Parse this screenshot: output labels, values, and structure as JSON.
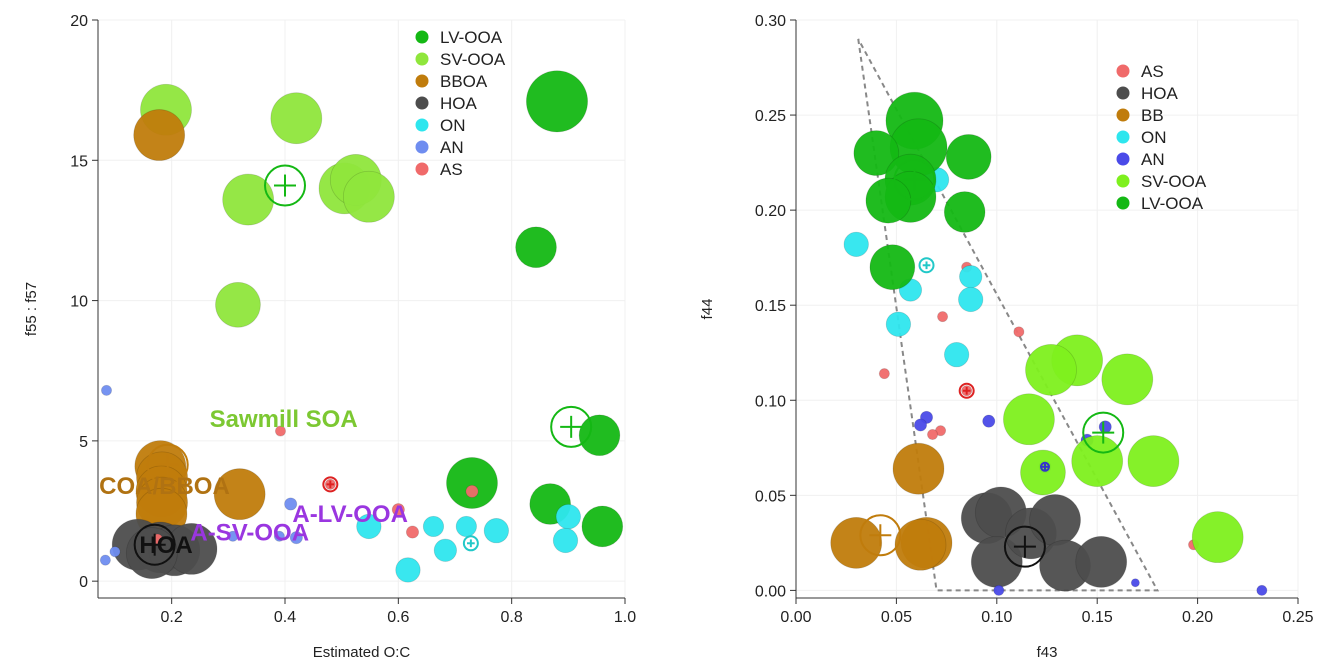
{
  "chart_data": [
    {
      "type": "scatter",
      "xlabel": "Estimated O:C",
      "ylabel": "f55 : f57",
      "xlim": [
        0.07,
        1.0
      ],
      "ylim": [
        -0.6,
        20.0
      ],
      "xticks": [
        0.2,
        0.4,
        0.6,
        0.8,
        1.0
      ],
      "xtick_labels": [
        "0.2",
        "0.4",
        "0.6",
        "0.8",
        "1.0"
      ],
      "yticks": [
        0,
        5,
        10,
        15,
        20
      ],
      "ytick_labels": [
        "0",
        "5",
        "10",
        "15",
        "20"
      ],
      "grid": true,
      "legend_position": "top-right",
      "legend": [
        {
          "label": "LV-OOA",
          "color": "#14b814"
        },
        {
          "label": "SV-OOA",
          "color": "#8fe63c"
        },
        {
          "label": "BBOA",
          "color": "#c07c0c"
        },
        {
          "label": "HOA",
          "color": "#4d4d4d"
        },
        {
          "label": "ON",
          "color": "#2ee6ee"
        },
        {
          "label": "AN",
          "color": "#6f8df0"
        },
        {
          "label": "AS",
          "color": "#f06a6a"
        }
      ],
      "series": [
        {
          "name": "LV-OOA",
          "color": "#14b814",
          "points": [
            [
              0.88,
              17.1,
              3
            ],
            [
              0.843,
              11.9,
              2
            ],
            [
              0.73,
              3.5,
              2.5
            ],
            [
              0.868,
              2.75,
              2
            ],
            [
              0.955,
              5.2,
              2
            ],
            [
              0.96,
              1.95,
              2
            ]
          ]
        },
        {
          "name": "SV-OOA",
          "color": "#8fe63c",
          "points": [
            [
              0.19,
              16.8,
              2.5
            ],
            [
              0.42,
              16.5,
              2.5
            ],
            [
              0.335,
              13.6,
              2.5
            ],
            [
              0.505,
              14.0,
              2.5
            ],
            [
              0.525,
              14.3,
              2.5
            ],
            [
              0.548,
              13.7,
              2.5
            ],
            [
              0.317,
              9.85,
              2.2
            ]
          ]
        },
        {
          "name": "BBOA",
          "color": "#c07c0c",
          "points": [
            [
              0.178,
              15.9,
              2.5
            ],
            [
              0.18,
              4.1,
              2.5
            ],
            [
              0.183,
              3.7,
              2.5
            ],
            [
              0.182,
              3.2,
              2.5
            ],
            [
              0.183,
              2.8,
              2.5
            ],
            [
              0.182,
              2.4,
              2.5
            ],
            [
              0.32,
              3.1,
              2.5
            ]
          ]
        },
        {
          "name": "HOA",
          "color": "#4d4d4d",
          "points": [
            [
              0.14,
              1.3,
              2.5
            ],
            [
              0.18,
              1.2,
              2.5
            ],
            [
              0.205,
              1.1,
              2.5
            ],
            [
              0.235,
              1.15,
              2.5
            ],
            [
              0.165,
              1.0,
              2.5
            ]
          ]
        },
        {
          "name": "ON",
          "color": "#2ee6ee",
          "points": [
            [
              0.548,
              1.95,
              1.2
            ],
            [
              0.617,
              0.4,
              1.2
            ],
            [
              0.662,
              1.95,
              1.0
            ],
            [
              0.683,
              1.1,
              1.1
            ],
            [
              0.72,
              1.95,
              1.0
            ],
            [
              0.773,
              1.8,
              1.2
            ],
            [
              0.9,
              2.3,
              1.2
            ],
            [
              0.895,
              1.45,
              1.2
            ]
          ]
        },
        {
          "name": "AN",
          "color": "#6f8df0",
          "points": [
            [
              0.085,
              6.8,
              0.5
            ],
            [
              0.083,
              0.75,
              0.5
            ],
            [
              0.1,
              1.05,
              0.5
            ],
            [
              0.308,
              1.6,
              0.5
            ],
            [
              0.39,
              1.6,
              0.5
            ],
            [
              0.41,
              2.75,
              0.6
            ],
            [
              0.42,
              1.55,
              0.6
            ]
          ]
        },
        {
          "name": "AS",
          "color": "#f06a6a",
          "points": [
            [
              0.392,
              5.35,
              0.5
            ],
            [
              0.48,
              3.45,
              0.5
            ],
            [
              0.6,
              2.55,
              0.6
            ],
            [
              0.625,
              1.75,
              0.6
            ],
            [
              0.73,
              3.2,
              0.6
            ],
            [
              0.175,
              1.5,
              0.5
            ]
          ]
        }
      ],
      "centroids": [
        {
          "series": "SV-OOA",
          "x": 0.4,
          "y": 14.1,
          "color": "#14b814"
        },
        {
          "series": "LV-OOA",
          "x": 0.905,
          "y": 5.5,
          "color": "#14b814"
        },
        {
          "series": "BBOA",
          "x": 0.193,
          "y": 4.15,
          "color": "#c07c0c"
        },
        {
          "series": "HOA",
          "x": 0.17,
          "y": 1.3,
          "color": "#111111"
        },
        {
          "series": "ON",
          "x": 0.728,
          "y": 1.35,
          "color": "#22c8c8"
        },
        {
          "series": "AS",
          "x": 0.48,
          "y": 3.45,
          "color": "#dd2222"
        }
      ],
      "annotations": [
        {
          "text": "Sawmill SOA",
          "x": 0.267,
          "y": 5.5,
          "color": "#7cc832"
        },
        {
          "text": "COA/BBOA",
          "x": 0.072,
          "y": 3.1,
          "color": "#b07212"
        },
        {
          "text": "HOA",
          "x": 0.143,
          "y": 1.0,
          "color": "#111111"
        },
        {
          "text": "A-SV-OOA",
          "x": 0.233,
          "y": 1.45,
          "color": "#9a36e0"
        },
        {
          "text": "A-LV-OOA",
          "x": 0.413,
          "y": 2.1,
          "color": "#9a36e0"
        }
      ]
    },
    {
      "type": "scatter",
      "xlabel": "f43",
      "ylabel": "f44",
      "xlim": [
        0.0,
        0.25
      ],
      "ylim": [
        -0.004,
        0.3
      ],
      "xticks": [
        0.0,
        0.05,
        0.1,
        0.15,
        0.2,
        0.25
      ],
      "xtick_labels": [
        "0.00",
        "0.05",
        "0.10",
        "0.15",
        "0.20",
        "0.25"
      ],
      "yticks": [
        0.0,
        0.05,
        0.1,
        0.15,
        0.2,
        0.25,
        0.3
      ],
      "ytick_labels": [
        "0.00",
        "0.05",
        "0.10",
        "0.15",
        "0.20",
        "0.25",
        "0.30"
      ],
      "grid": true,
      "legend_position": "top-right",
      "legend": [
        {
          "label": "AS",
          "color": "#f06a6a"
        },
        {
          "label": "HOA",
          "color": "#4d4d4d"
        },
        {
          "label": "BB",
          "color": "#c07c0c"
        },
        {
          "label": "ON",
          "color": "#2ee6ee"
        },
        {
          "label": "AN",
          "color": "#4a4ae8"
        },
        {
          "label": "SV-OOA",
          "color": "#7ef01e"
        },
        {
          "label": "LV-OOA",
          "color": "#14b814"
        }
      ],
      "triangle": [
        [
          0.031,
          0.29
        ],
        [
          0.07,
          0.0
        ],
        [
          0.18,
          0.0
        ]
      ],
      "series": [
        {
          "name": "AS",
          "color": "#f06a6a",
          "points": [
            [
              0.085,
              0.17,
              0.5
            ],
            [
              0.073,
              0.144,
              0.5
            ],
            [
              0.111,
              0.136,
              0.5
            ],
            [
              0.044,
              0.114,
              0.5
            ],
            [
              0.085,
              0.105,
              0.5
            ],
            [
              0.072,
              0.084,
              0.5
            ],
            [
              0.068,
              0.082,
              0.5
            ],
            [
              0.198,
              0.024,
              0.5
            ]
          ]
        },
        {
          "name": "HOA",
          "color": "#4d4d4d",
          "points": [
            [
              0.095,
              0.038,
              2.5
            ],
            [
              0.102,
              0.041,
              2.5
            ],
            [
              0.1,
              0.015,
              2.5
            ],
            [
              0.117,
              0.03,
              2.5
            ],
            [
              0.129,
              0.037,
              2.5
            ],
            [
              0.134,
              0.013,
              2.5
            ],
            [
              0.152,
              0.015,
              2.5
            ]
          ]
        },
        {
          "name": "BB",
          "color": "#c07c0c",
          "points": [
            [
              0.061,
              0.064,
              2.5
            ],
            [
              0.03,
              0.025,
              2.5
            ],
            [
              0.065,
              0.025,
              2.5
            ],
            [
              0.062,
              0.024,
              2.5
            ]
          ]
        },
        {
          "name": "ON",
          "color": "#2ee6ee",
          "points": [
            [
              0.07,
              0.216,
              1.2
            ],
            [
              0.03,
              0.182,
              1.2
            ],
            [
              0.087,
              0.165,
              1.1
            ],
            [
              0.057,
              0.158,
              1.1
            ],
            [
              0.087,
              0.153,
              1.2
            ],
            [
              0.051,
              0.14,
              1.2
            ],
            [
              0.08,
              0.124,
              1.2
            ]
          ]
        },
        {
          "name": "AN",
          "color": "#4a4ae8",
          "points": [
            [
              0.065,
              0.091,
              0.6
            ],
            [
              0.062,
              0.087,
              0.6
            ],
            [
              0.096,
              0.089,
              0.6
            ],
            [
              0.145,
              0.079,
              0.6
            ],
            [
              0.154,
              0.086,
              0.6
            ],
            [
              0.124,
              0.065,
              0.6
            ],
            [
              0.169,
              0.004,
              0.4
            ],
            [
              0.232,
              0.0,
              0.5
            ],
            [
              0.101,
              0.0,
              0.5
            ]
          ]
        },
        {
          "name": "SV-OOA",
          "color": "#7ef01e",
          "points": [
            [
              0.14,
              0.121,
              2.5
            ],
            [
              0.127,
              0.116,
              2.5
            ],
            [
              0.165,
              0.111,
              2.5
            ],
            [
              0.116,
              0.09,
              2.5
            ],
            [
              0.15,
              0.068,
              2.5
            ],
            [
              0.178,
              0.068,
              2.5
            ],
            [
              0.123,
              0.062,
              2.2
            ],
            [
              0.21,
              0.028,
              2.5
            ]
          ]
        },
        {
          "name": "LV-OOA",
          "color": "#14b814",
          "points": [
            [
              0.059,
              0.247,
              2.8
            ],
            [
              0.061,
              0.233,
              2.8
            ],
            [
              0.04,
              0.23,
              2.2
            ],
            [
              0.086,
              0.228,
              2.2
            ],
            [
              0.057,
              0.216,
              2.5
            ],
            [
              0.057,
              0.207,
              2.5
            ],
            [
              0.046,
              0.205,
              2.2
            ],
            [
              0.084,
              0.199,
              2.0
            ],
            [
              0.048,
              0.17,
              2.2
            ]
          ]
        }
      ],
      "centroids": [
        {
          "series": "LV-OOA",
          "x": 0.059,
          "y": 0.216,
          "color": "#14b814"
        },
        {
          "series": "ON",
          "x": 0.065,
          "y": 0.171,
          "color": "#22c8c8"
        },
        {
          "series": "AS",
          "x": 0.085,
          "y": 0.105,
          "color": "#dd2222"
        },
        {
          "series": "SV-OOA",
          "x": 0.153,
          "y": 0.083,
          "color": "#14b814"
        },
        {
          "series": "AN",
          "x": 0.124,
          "y": 0.065,
          "color": "#3333cc"
        },
        {
          "series": "BB",
          "x": 0.042,
          "y": 0.029,
          "color": "#c07c0c"
        },
        {
          "series": "HOA",
          "x": 0.114,
          "y": 0.023,
          "color": "#111111"
        }
      ]
    }
  ]
}
